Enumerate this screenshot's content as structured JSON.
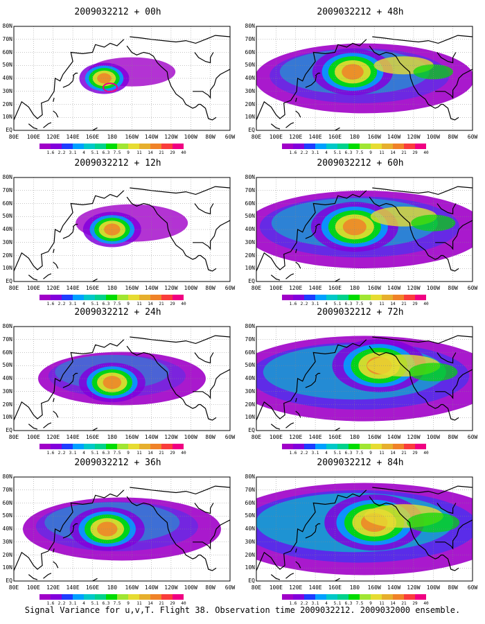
{
  "caption": "Signal Variance for u,v,T. Flight 38. Observation time 2009032212. 2009032000 ensemble.",
  "panels": [
    {
      "title": "2009032212 + 00h",
      "intensity": 0.35,
      "center_lon": 172,
      "center_lat": 40
    },
    {
      "title": "2009032212 + 12h",
      "intensity": 0.45,
      "center_lon": 180,
      "center_lat": 40
    },
    {
      "title": "2009032212 + 24h",
      "intensity": 0.55,
      "center_lon": 180,
      "center_lat": 37
    },
    {
      "title": "2009032212 + 36h",
      "intensity": 0.65,
      "center_lon": 175,
      "center_lat": 40
    },
    {
      "title": "2009032212 + 48h",
      "intensity": 0.72,
      "center_lon": 178,
      "center_lat": 45
    },
    {
      "title": "2009032212 + 60h",
      "intensity": 0.8,
      "center_lon": 180,
      "center_lat": 42
    },
    {
      "title": "2009032212 + 72h",
      "intensity": 0.88,
      "center_lon": 205,
      "center_lat": 50
    },
    {
      "title": "2009032212 + 84h",
      "intensity": 0.95,
      "center_lon": 200,
      "center_lat": 45
    }
  ],
  "lon_labels": [
    "80E",
    "100E",
    "120E",
    "140E",
    "160E",
    "180",
    "160W",
    "140W",
    "120W",
    "100W",
    "80W",
    "60W"
  ],
  "lat_labels": [
    "80N",
    "70N",
    "60N",
    "50N",
    "40N",
    "30N",
    "20N",
    "10N",
    "EQ"
  ],
  "colorbar": {
    "ticks": [
      "1.6",
      "2.2",
      "3.1",
      "4",
      "5.1",
      "6.3",
      "7.5",
      "9",
      "11",
      "14",
      "21",
      "29",
      "40"
    ],
    "colors": [
      "#a000c8",
      "#8200dc",
      "#1e3cff",
      "#00a0ff",
      "#00c8c8",
      "#00d28c",
      "#00dc00",
      "#a0e632",
      "#e6dc32",
      "#e6af2d",
      "#f08228",
      "#fa3c3c",
      "#f00082"
    ]
  },
  "colors": {
    "coast": "#000000",
    "grid": "#888888",
    "land_bg": "#ffffff"
  }
}
